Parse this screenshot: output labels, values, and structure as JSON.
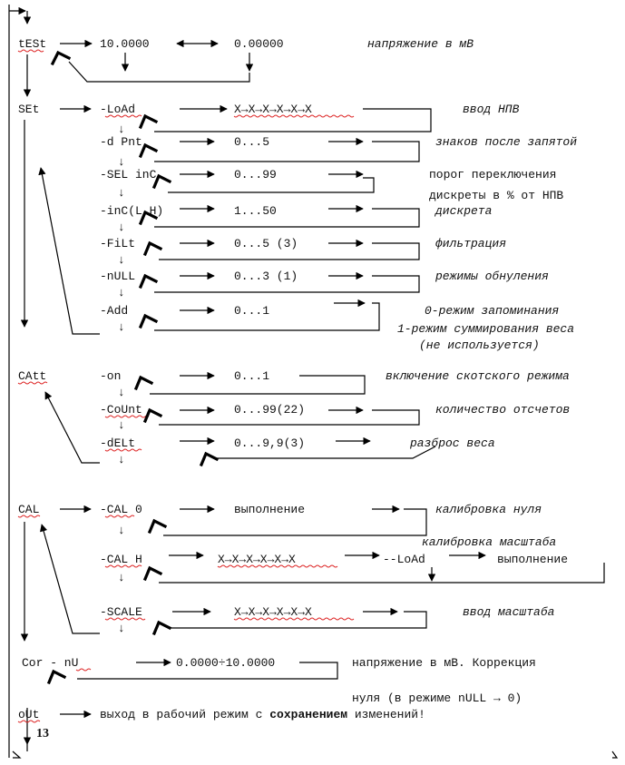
{
  "menu": [
    {
      "id": "test",
      "label": "tESt"
    },
    {
      "id": "set",
      "label": "SEt"
    },
    {
      "id": "catt",
      "label": "CAtt"
    },
    {
      "id": "cal",
      "label": "CAL"
    },
    {
      "id": "cor",
      "label": "Cor - nU"
    },
    {
      "id": "out",
      "label": "oUt"
    }
  ],
  "test_row": {
    "value_max": "10.0000",
    "value_min": "0.00000",
    "note": "напряжение в мВ"
  },
  "set_items": [
    {
      "label": "-LoAd",
      "value": "X→X→X→X→X→X",
      "note": "ввод НПВ"
    },
    {
      "label": "-d Pnt",
      "value": "0...5",
      "note": "знаков после запятой"
    },
    {
      "label": "-SEL inC",
      "value": "0...99",
      "note": "порог переключения",
      "note2": "дискреты в % от НПВ"
    },
    {
      "label": "-inC(L,H)",
      "value": "1...50",
      "note": "дискрета"
    },
    {
      "label": "-FiLt",
      "value": "0...5 (3)",
      "note": "фильтрация"
    },
    {
      "label": "-nULL",
      "value": "0...3 (1)",
      "note": "режимы обнуления"
    },
    {
      "label": "-Add",
      "value": "0...1",
      "note": "0-режим запоминания",
      "note2": "1-режим суммирования веса",
      "note3": "(не используется)"
    }
  ],
  "catt_items": [
    {
      "label": "-on",
      "value": "0...1",
      "note": "включение скотского режима"
    },
    {
      "label": "-CoUnt",
      "value": "0...99(22)",
      "note": "количество отсчетов"
    },
    {
      "label": "-dELt",
      "value": "0...9,9(3)",
      "note": "разброс веса"
    }
  ],
  "cal_items": [
    {
      "label": "-CAL 0",
      "value": "выполнение",
      "note": "калибровка нуля"
    },
    {
      "label": "-CAL H",
      "value": "X→X→X→X→X→X",
      "load": "--LoAd",
      "exec": "выполнение",
      "note": "калибровка масштаба"
    },
    {
      "label": "-SCALE",
      "value": "X→X→X→X→X→X",
      "note": "ввод масштаба"
    }
  ],
  "cor_row": {
    "value": "0.0000÷10.0000",
    "note": "напряжение в мВ. Коррекция",
    "note2": "нуля (в режиме nULL → 0)"
  },
  "out_row": {
    "text_before": "выход в рабочий режим с ",
    "text_bold": "сохранением",
    "text_after": " изменений!"
  },
  "page_number": "13",
  "symbols": {
    "down_arrow": "↓"
  }
}
